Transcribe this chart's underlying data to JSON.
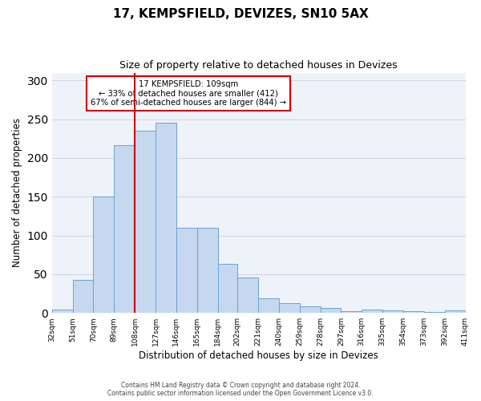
{
  "title": "17, KEMPSFIELD, DEVIZES, SN10 5AX",
  "subtitle": "Size of property relative to detached houses in Devizes",
  "xlabel": "Distribution of detached houses by size in Devizes",
  "ylabel": "Number of detached properties",
  "bin_labels": [
    "32sqm",
    "51sqm",
    "70sqm",
    "89sqm",
    "108sqm",
    "127sqm",
    "146sqm",
    "165sqm",
    "184sqm",
    "202sqm",
    "221sqm",
    "240sqm",
    "259sqm",
    "278sqm",
    "297sqm",
    "316sqm",
    "335sqm",
    "354sqm",
    "373sqm",
    "392sqm",
    "411sqm"
  ],
  "bar_values": [
    4,
    43,
    150,
    216,
    235,
    245,
    110,
    110,
    63,
    46,
    19,
    13,
    8,
    6,
    2,
    4,
    3,
    2,
    1,
    3
  ],
  "bar_color": "#c5d8f0",
  "bar_edge_color": "#6aa3d5",
  "vline_x": 108,
  "vline_color": "#cc0000",
  "annotation_title": "17 KEMPSFIELD: 109sqm",
  "annotation_line1": "← 33% of detached houses are smaller (412)",
  "annotation_line2": "67% of semi-detached houses are larger (844) →",
  "annotation_box_color": "#ffffff",
  "annotation_box_edge": "#cc0000",
  "ylim": [
    0,
    310
  ],
  "yticks": [
    0,
    50,
    100,
    150,
    200,
    250,
    300
  ],
  "footer_line1": "Contains HM Land Registry data © Crown copyright and database right 2024.",
  "footer_line2": "Contains public sector information licensed under the Open Government Licence v3.0.",
  "background_color": "#eef2f9",
  "bin_edges": [
    32,
    51,
    70,
    89,
    108,
    127,
    146,
    165,
    184,
    202,
    221,
    240,
    259,
    278,
    297,
    316,
    335,
    354,
    373,
    392,
    411
  ]
}
